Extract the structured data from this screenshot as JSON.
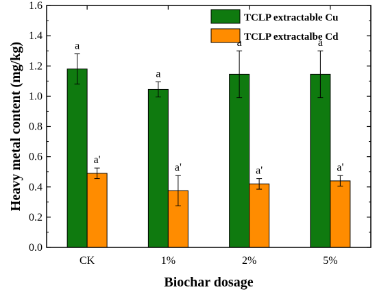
{
  "chart_data": {
    "type": "bar",
    "xlabel": "Biochar dosage",
    "ylabel": "Heavy metal content (mg/kg)",
    "categories": [
      "CK",
      "1%",
      "2%",
      "5%"
    ],
    "ylim": [
      0.0,
      1.6
    ],
    "yticks": [
      "0.0",
      "0.2",
      "0.4",
      "0.6",
      "0.8",
      "1.0",
      "1.2",
      "1.4",
      "1.6"
    ],
    "legend_position": "top-right",
    "series": [
      {
        "name": "TCLP extractable Cu",
        "color": "#0f7a0f",
        "values": [
          1.18,
          1.045,
          1.145,
          1.145
        ],
        "errors": [
          0.1,
          0.05,
          0.155,
          0.155
        ],
        "labels": [
          "a",
          "a",
          "a",
          "a"
        ]
      },
      {
        "name": "TCLP extractalbe Cd",
        "color": "#ff8c00",
        "values": [
          0.49,
          0.375,
          0.42,
          0.44
        ],
        "errors": [
          0.035,
          0.1,
          0.035,
          0.035
        ],
        "labels": [
          "a'",
          "a'",
          "a'",
          "a'"
        ]
      }
    ]
  }
}
